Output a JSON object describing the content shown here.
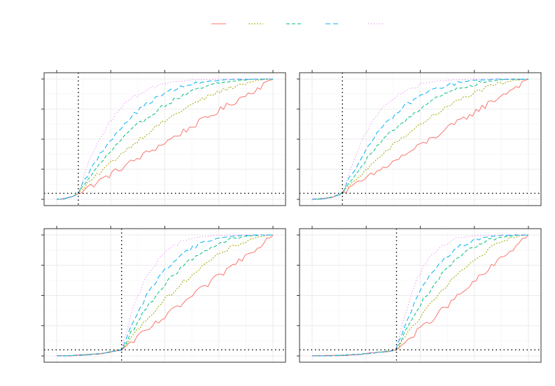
{
  "figure": {
    "series_colors": [
      "#F8766D",
      "#A3A500",
      "#00BF7D",
      "#00B0F6",
      "#E76BF3"
    ],
    "series_dash": [
      "",
      "2,2",
      "5,3",
      "7,4",
      "1,3"
    ],
    "reference_line_style": "dotted black"
  },
  "chart_data": [
    {
      "type": "line",
      "panel": "top-left",
      "grid": true,
      "xlim": [
        0,
        1
      ],
      "ylim": [
        0,
        1
      ],
      "reference": {
        "x": 0.1,
        "y": 0.05
      },
      "series": [
        {
          "k": 1.0,
          "values_from": "model"
        },
        {
          "k": 1.7,
          "values_from": "model"
        },
        {
          "k": 2.5,
          "values_from": "model"
        },
        {
          "k": 3.5,
          "values_from": "model"
        },
        {
          "k": 5.5,
          "values_from": "model"
        }
      ]
    },
    {
      "type": "line",
      "panel": "top-right",
      "grid": true,
      "xlim": [
        0,
        1
      ],
      "ylim": [
        0,
        1
      ],
      "reference": {
        "x": 0.14,
        "y": 0.05
      },
      "series": [
        {
          "k": 1.0,
          "values_from": "model"
        },
        {
          "k": 1.7,
          "values_from": "model"
        },
        {
          "k": 2.5,
          "values_from": "model"
        },
        {
          "k": 3.5,
          "values_from": "model"
        },
        {
          "k": 5.5,
          "values_from": "model"
        }
      ]
    },
    {
      "type": "line",
      "panel": "bottom-left",
      "grid": true,
      "xlim": [
        0,
        1
      ],
      "ylim": [
        0,
        1
      ],
      "reference": {
        "x": 0.3,
        "y": 0.05
      },
      "series": [
        {
          "k": 1.0,
          "values_from": "model"
        },
        {
          "k": 1.7,
          "values_from": "model"
        },
        {
          "k": 2.5,
          "values_from": "model"
        },
        {
          "k": 3.5,
          "values_from": "model"
        },
        {
          "k": 5.5,
          "values_from": "model"
        }
      ]
    },
    {
      "type": "line",
      "panel": "bottom-right",
      "grid": true,
      "xlim": [
        0,
        1
      ],
      "ylim": [
        0,
        1
      ],
      "reference": {
        "x": 0.39,
        "y": 0.05
      },
      "series": [
        {
          "k": 1.0,
          "values_from": "model"
        },
        {
          "k": 1.7,
          "values_from": "model"
        },
        {
          "k": 2.5,
          "values_from": "model"
        },
        {
          "k": 3.5,
          "values_from": "model"
        },
        {
          "k": 5.5,
          "values_from": "model"
        }
      ]
    }
  ]
}
